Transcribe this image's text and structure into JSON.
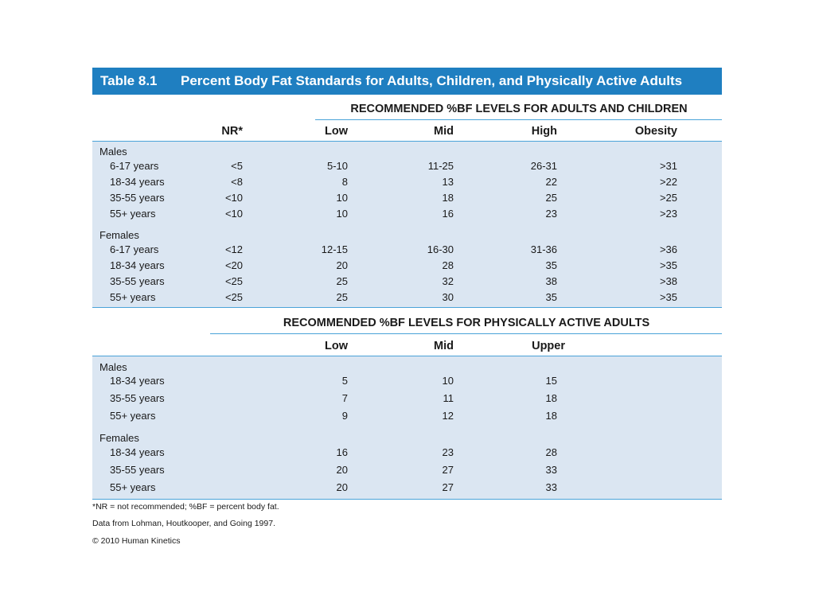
{
  "table": {
    "number": "Table 8.1",
    "title": "Percent Body Fat Standards for Adults, Children, and Physically Active Adults"
  },
  "section1": {
    "heading": "RECOMMENDED %BF LEVELS FOR ADULTS AND CHILDREN",
    "columns": [
      "NR*",
      "Low",
      "Mid",
      "High",
      "Obesity"
    ],
    "groups": [
      {
        "label": "Males",
        "rows": [
          {
            "age": "6-17 years",
            "nr": "<5",
            "low": "5-10",
            "mid": "11-25",
            "high": "26-31",
            "obesity": ">31"
          },
          {
            "age": "18-34 years",
            "nr": "<8",
            "low": "8",
            "mid": "13",
            "high": "22",
            "obesity": ">22"
          },
          {
            "age": "35-55 years",
            "nr": "<10",
            "low": "10",
            "mid": "18",
            "high": "25",
            "obesity": ">25"
          },
          {
            "age": "55+ years",
            "nr": "<10",
            "low": "10",
            "mid": "16",
            "high": "23",
            "obesity": ">23"
          }
        ]
      },
      {
        "label": "Females",
        "rows": [
          {
            "age": "6-17 years",
            "nr": "<12",
            "low": "12-15",
            "mid": "16-30",
            "high": "31-36",
            "obesity": ">36"
          },
          {
            "age": "18-34 years",
            "nr": "<20",
            "low": "20",
            "mid": "28",
            "high": "35",
            "obesity": ">35"
          },
          {
            "age": "35-55 years",
            "nr": "<25",
            "low": "25",
            "mid": "32",
            "high": "38",
            "obesity": ">38"
          },
          {
            "age": "55+ years",
            "nr": "<25",
            "low": "25",
            "mid": "30",
            "high": "35",
            "obesity": ">35"
          }
        ]
      }
    ]
  },
  "section2": {
    "heading": "RECOMMENDED %BF LEVELS FOR PHYSICALLY ACTIVE ADULTS",
    "columns": [
      "Low",
      "Mid",
      "Upper"
    ],
    "groups": [
      {
        "label": "Males",
        "rows": [
          {
            "age": "18-34 years",
            "low": "5",
            "mid": "10",
            "upper": "15"
          },
          {
            "age": "35-55 years",
            "low": "7",
            "mid": "11",
            "upper": "18"
          },
          {
            "age": "55+ years",
            "low": "9",
            "mid": "12",
            "upper": "18"
          }
        ]
      },
      {
        "label": "Females",
        "rows": [
          {
            "age": "18-34 years",
            "low": "16",
            "mid": "23",
            "upper": "28"
          },
          {
            "age": "35-55 years",
            "low": "20",
            "mid": "27",
            "upper": "33"
          },
          {
            "age": "55+ years",
            "low": "20",
            "mid": "27",
            "upper": "33"
          }
        ]
      }
    ]
  },
  "footnotes": {
    "note": "*NR = not recommended; %BF = percent body fat.",
    "source": "Data from Lohman, Houtkooper, and Going 1997.",
    "copyright": "© 2010 Human Kinetics"
  },
  "colors": {
    "title_bar": "#1f7fc1",
    "band": "#dbe6f2",
    "rule": "#4aa3d8"
  }
}
